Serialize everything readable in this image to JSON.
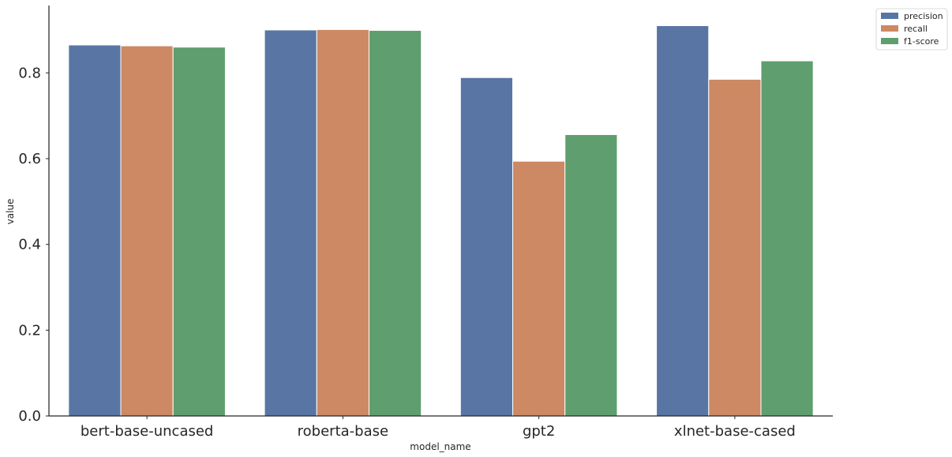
{
  "chart_data": {
    "type": "bar",
    "title": "",
    "xlabel": "model_name",
    "ylabel": "value",
    "categories": [
      "bert-base-uncased",
      "roberta-base",
      "gpt2",
      "xlnet-base-cased"
    ],
    "series": [
      {
        "name": "precision",
        "color": "#5875a4",
        "values": [
          0.865,
          0.9,
          0.789,
          0.91
        ]
      },
      {
        "name": "recall",
        "color": "#cc8963",
        "values": [
          0.863,
          0.901,
          0.594,
          0.785
        ]
      },
      {
        "name": "f1-score",
        "color": "#5f9e6e",
        "values": [
          0.86,
          0.899,
          0.656,
          0.828
        ]
      }
    ],
    "ylim": [
      0,
      0.957
    ],
    "yticks": [
      "0.0",
      "0.2",
      "0.4",
      "0.6",
      "0.8"
    ],
    "grid": false,
    "legend_position": "outside top-right"
  }
}
